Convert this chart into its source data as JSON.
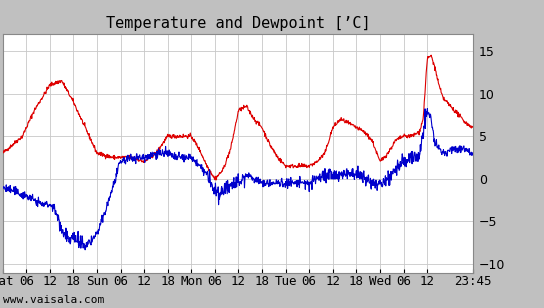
{
  "title": "Temperature and Dewpoint [’C]",
  "ylim": [
    -11,
    17
  ],
  "yticks": [
    -10,
    -5,
    0,
    5,
    10,
    15
  ],
  "x_tick_hours": [
    0,
    6,
    12,
    18,
    24,
    30,
    36,
    42,
    48,
    54,
    60,
    66,
    72,
    78,
    84,
    90,
    96,
    102,
    108,
    119.75
  ],
  "x_tick_labels": [
    "Sat",
    "06",
    "12",
    "18",
    "Sun",
    "06",
    "12",
    "18",
    "Mon",
    "06",
    "12",
    "18",
    "Tue",
    "06",
    "12",
    "18",
    "Wed",
    "06",
    "12",
    "23:45"
  ],
  "background_color": "#c0c0c0",
  "plot_bg_color": "#ffffff",
  "grid_color": "#c8c8c8",
  "temp_color": "#dd0000",
  "dewpoint_color": "#0000cc",
  "watermark": "www.vaisala.com",
  "title_fontsize": 11,
  "tick_fontsize": 9,
  "watermark_fontsize": 8,
  "xlim_end": 119.75,
  "temp_keypoints_t": [
    0,
    5,
    8,
    12,
    15,
    18,
    20,
    22,
    24,
    28,
    30,
    33,
    36,
    39,
    42,
    44,
    46,
    48,
    50,
    52,
    54,
    56,
    58,
    60,
    62,
    64,
    66,
    68,
    70,
    72,
    74,
    76,
    78,
    80,
    82,
    84,
    86,
    88,
    90,
    92,
    94,
    96,
    98,
    100,
    102,
    104,
    106,
    107,
    108,
    109,
    110,
    111,
    112,
    113,
    114,
    116,
    118,
    119.75
  ],
  "temp_keypoints_v": [
    3,
    5,
    8,
    11,
    11.5,
    9,
    7,
    5,
    3,
    2.5,
    2.5,
    2.5,
    2,
    3,
    5,
    5,
    5,
    5,
    3.5,
    1.5,
    0,
    1,
    3.5,
    8,
    8.5,
    7,
    6,
    4,
    2.5,
    1.5,
    1.5,
    1.5,
    1.5,
    2,
    3,
    6,
    7,
    6.5,
    6,
    5.5,
    4.5,
    2,
    3,
    4.5,
    5,
    5,
    5.5,
    7,
    14,
    14.5,
    13,
    11,
    9.5,
    9,
    8.5,
    7.5,
    6.5,
    6
  ],
  "dew_keypoints_t": [
    0,
    3,
    6,
    8,
    10,
    12,
    13,
    14,
    15,
    16,
    17,
    18,
    19,
    20,
    21,
    22,
    23,
    24,
    26,
    28,
    30,
    33,
    36,
    39,
    42,
    44,
    46,
    48,
    50,
    52,
    53,
    54,
    55,
    56,
    58,
    60,
    62,
    64,
    66,
    68,
    70,
    72,
    74,
    76,
    78,
    80,
    82,
    84,
    86,
    88,
    90,
    92,
    94,
    96,
    98,
    100,
    102,
    104,
    106,
    108,
    109,
    110,
    111,
    112,
    113,
    114,
    116,
    118,
    119.75
  ],
  "dew_keypoints_v": [
    -1,
    -1.5,
    -2,
    -2.5,
    -3,
    -3,
    -3.5,
    -4.5,
    -6,
    -6.5,
    -7,
    -7,
    -7.5,
    -7.5,
    -8,
    -7.5,
    -7,
    -6.5,
    -4,
    -1,
    2,
    2.5,
    2.5,
    3,
    3,
    2.5,
    2.5,
    2.5,
    1.5,
    0.5,
    -0.5,
    -1.5,
    -2,
    -1.5,
    -0.5,
    -0.5,
    0.5,
    0,
    -0.5,
    -0.5,
    -0.5,
    -0.5,
    -0.5,
    -0.5,
    -0.5,
    0,
    0.5,
    0.5,
    0.5,
    0.5,
    0.5,
    0,
    -0.5,
    -0.5,
    0,
    1,
    2,
    2.5,
    3,
    8,
    7,
    4,
    3.5,
    3,
    3,
    3.5,
    3.5,
    3.5,
    3
  ]
}
